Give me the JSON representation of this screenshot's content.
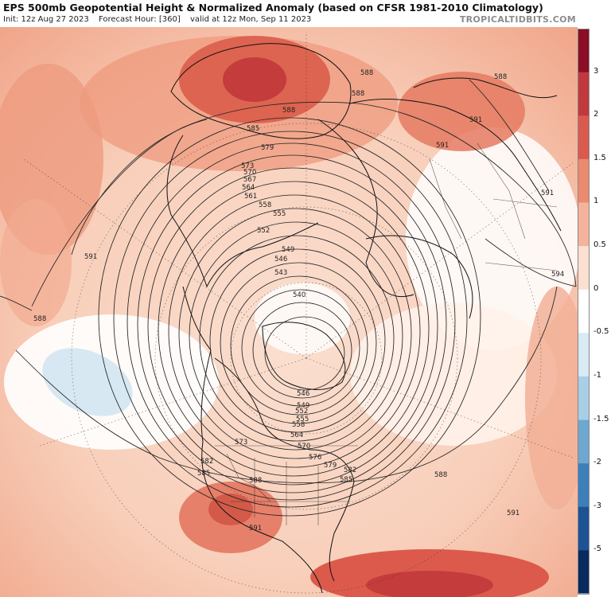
{
  "header": {
    "title": "EPS 500mb Geopotential Height & Normalized Anomaly (based on CFSR 1981-2010 Climatology)",
    "init": "Init: 12z Aug 27 2023",
    "forecast_hour": "Forecast Hour: [360]",
    "valid": "valid at 12z Mon, Sep 11 2023",
    "source": "TROPICALTIDBITS.COM"
  },
  "colorbar": {
    "ticks": [
      "3",
      "2",
      "1.5",
      "1",
      "0.5",
      "0",
      "-0.5",
      "-1",
      "-1.5",
      "-2",
      "-3",
      "-5"
    ],
    "tick_values": [
      3,
      2,
      1.5,
      1,
      0.5,
      0,
      -0.5,
      -1,
      -1.5,
      -2,
      -3,
      -5
    ],
    "colors": [
      "#8b0e26",
      "#c1393d",
      "#da5a4d",
      "#eb8a6e",
      "#f4b39a",
      "#fbe0d2",
      "#ffffff",
      "#d8eaf3",
      "#a9cfe4",
      "#6ea8cf",
      "#3d7fb9",
      "#1d5394",
      "#0a2a5e"
    ]
  },
  "map_labels": {
    "h540": "540",
    "h543": "543",
    "h546": "546",
    "h549": "549",
    "h552": "552",
    "h555": "555",
    "h558": "558",
    "h561": "561",
    "h564": "564",
    "h567": "567",
    "h570": "570",
    "h573": "573",
    "h576": "576",
    "h579": "579",
    "h582": "582",
    "h585": "585",
    "h588": "588",
    "h591": "591",
    "h594": "594"
  }
}
